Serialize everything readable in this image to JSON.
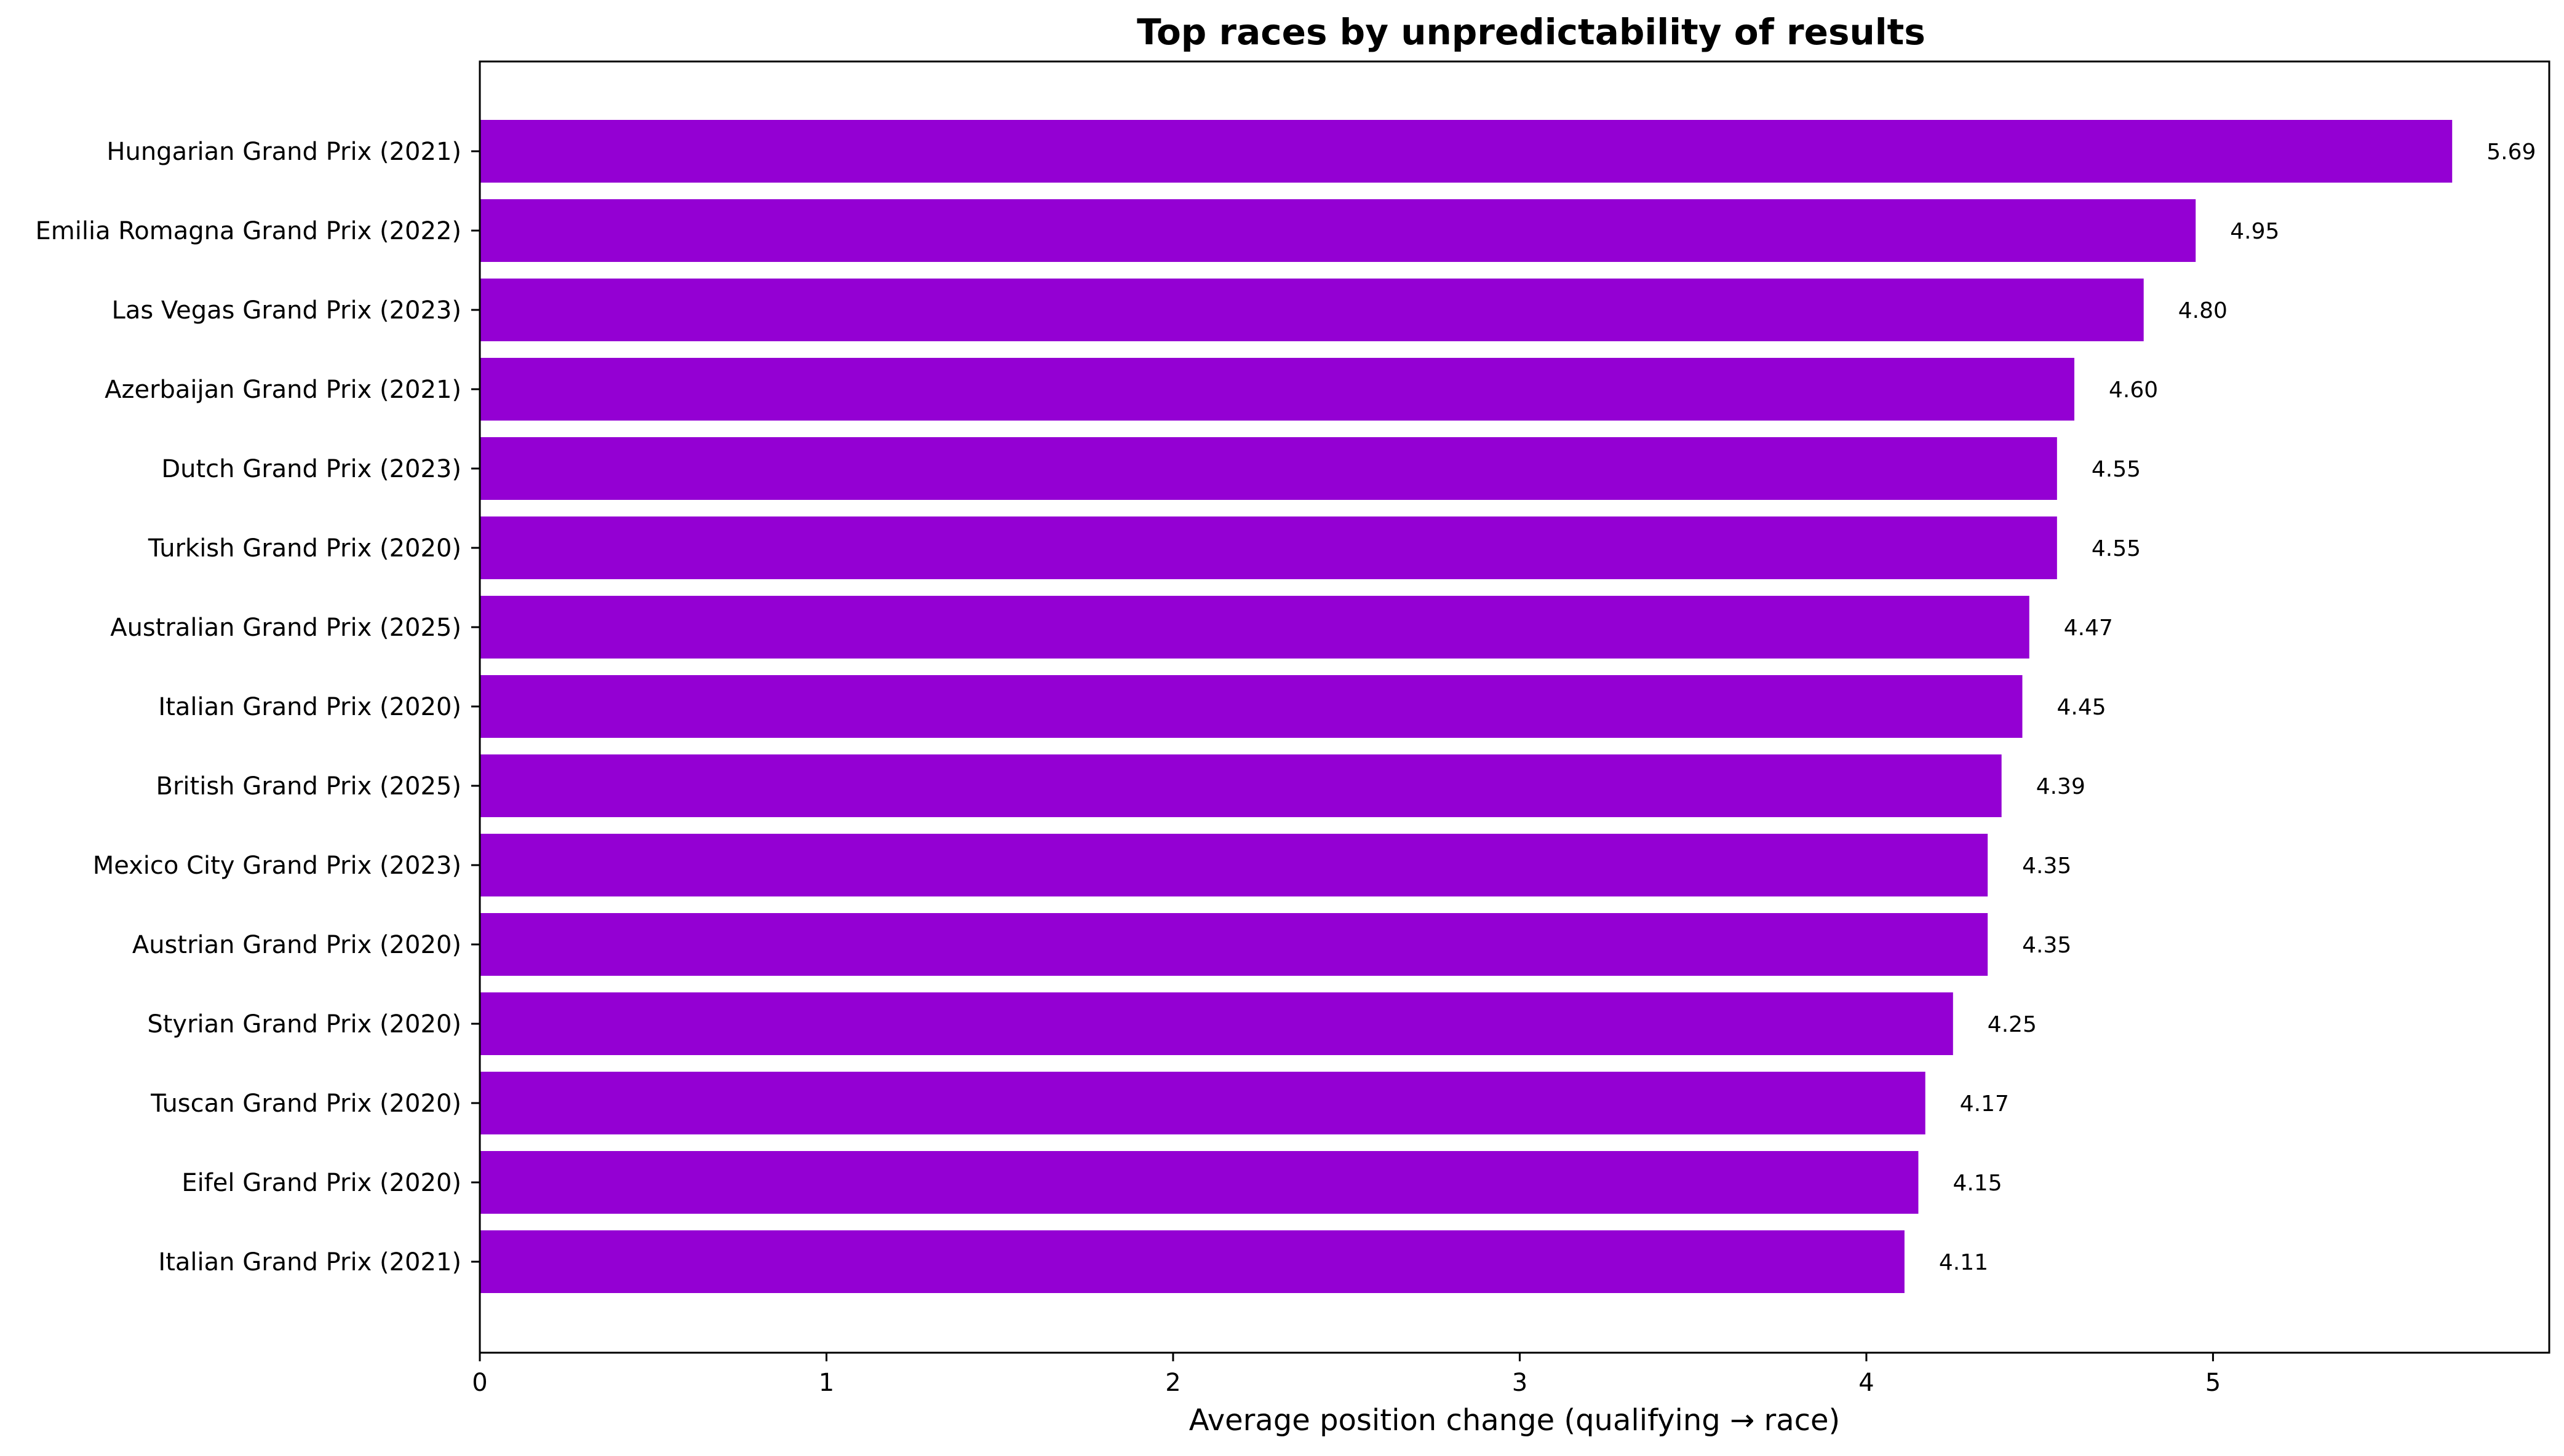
{
  "chart_data": {
    "type": "bar",
    "orientation": "horizontal",
    "title": "Top races by unpredictability of results",
    "xlabel": "Average position change (qualifying → race)",
    "ylabel": "",
    "xlim": [
      0,
      5.97
    ],
    "xticks": [
      0,
      1,
      2,
      3,
      4,
      5
    ],
    "grid": false,
    "bar_color": "#9400D3",
    "categories": [
      "Hungarian Grand Prix (2021)",
      "Emilia Romagna Grand Prix (2022)",
      "Las Vegas Grand Prix (2023)",
      "Azerbaijan Grand Prix (2021)",
      "Dutch Grand Prix (2023)",
      "Turkish Grand Prix (2020)",
      "Australian Grand Prix (2025)",
      "Italian Grand Prix (2020)",
      "British Grand Prix (2025)",
      "Mexico City Grand Prix (2023)",
      "Austrian Grand Prix (2020)",
      "Styrian Grand Prix (2020)",
      "Tuscan Grand Prix (2020)",
      "Eifel Grand Prix (2020)",
      "Italian Grand Prix (2021)"
    ],
    "values": [
      5.69,
      4.95,
      4.8,
      4.6,
      4.55,
      4.55,
      4.47,
      4.45,
      4.39,
      4.35,
      4.35,
      4.25,
      4.17,
      4.15,
      4.11
    ],
    "value_labels": [
      "5.69",
      "4.95",
      "4.80",
      "4.60",
      "4.55",
      "4.55",
      "4.47",
      "4.45",
      "4.39",
      "4.35",
      "4.35",
      "4.25",
      "4.17",
      "4.15",
      "4.11"
    ]
  }
}
